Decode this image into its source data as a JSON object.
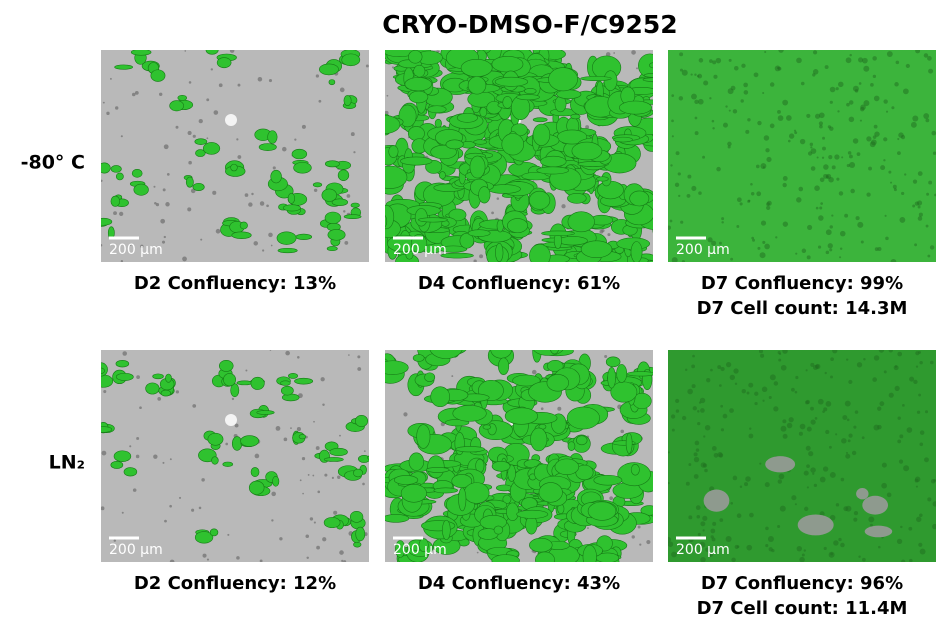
{
  "title": "CRYO-DMSO-F/C9252",
  "rows": [
    {
      "label": "-80° C",
      "panels": [
        {
          "scale_bar": "200 µm",
          "captions": [
            "D2 Confluency: 13%"
          ]
        },
        {
          "scale_bar": "200 µm",
          "captions": [
            "D4 Confluency: 61%"
          ]
        },
        {
          "scale_bar": "200 µm",
          "captions": [
            "D7 Confluency: 99%",
            "D7 Cell count: 14.3M"
          ]
        }
      ]
    },
    {
      "label": "LN₂",
      "panels": [
        {
          "scale_bar": "200 µm",
          "captions": [
            "D2 Confluency: 12%"
          ]
        },
        {
          "scale_bar": "200 µm",
          "captions": [
            "D4 Confluency: 43%"
          ]
        },
        {
          "scale_bar": "200 µm",
          "captions": [
            "D7 Confluency: 96%",
            "D7 Cell count: 11.4M"
          ]
        }
      ]
    }
  ]
}
